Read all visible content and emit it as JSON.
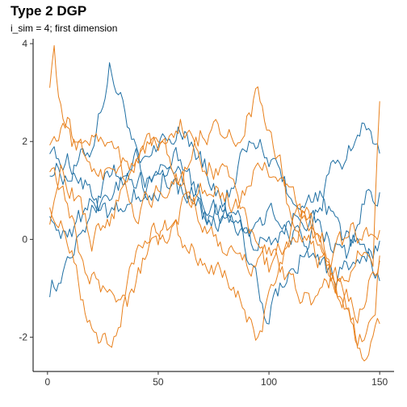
{
  "chart_data": {
    "type": "line",
    "title": "Type 2 DGP",
    "subtitle": "i_sim = 4; first dimension",
    "xlabel": "",
    "ylabel": "",
    "xlim": [
      -6.5,
      156.5
    ],
    "ylim": [
      -2.7,
      4.1
    ],
    "x_ticks": [
      0,
      50,
      100,
      150
    ],
    "y_ticks": [
      -2,
      0,
      2,
      4
    ],
    "grid": false,
    "legend": "none",
    "colors": {
      "blue": "#1f6fa3",
      "orange": "#e8801c"
    },
    "x_start": 1,
    "x_step": 1,
    "n_points": 150,
    "series": [
      {
        "color": "#1f6fa3",
        "anchors": [
          [
            1,
            1.5
          ],
          [
            10,
            1.3
          ],
          [
            20,
            1.9
          ],
          [
            28,
            3.5
          ],
          [
            36,
            2.5
          ],
          [
            44,
            0.9
          ],
          [
            55,
            1.6
          ],
          [
            65,
            0.8
          ],
          [
            75,
            0.3
          ],
          [
            85,
            0.5
          ],
          [
            95,
            -0.1
          ],
          [
            105,
            0.2
          ],
          [
            115,
            0.6
          ],
          [
            125,
            0.1
          ],
          [
            135,
            -0.3
          ],
          [
            145,
            1.0
          ],
          [
            150,
            1.0
          ]
        ]
      },
      {
        "color": "#1f6fa3",
        "anchors": [
          [
            1,
            -1.0
          ],
          [
            8,
            -0.5
          ],
          [
            18,
            0.5
          ],
          [
            28,
            1.2
          ],
          [
            38,
            1.5
          ],
          [
            48,
            1.9
          ],
          [
            58,
            2.3
          ],
          [
            68,
            1.8
          ],
          [
            78,
            0.9
          ],
          [
            88,
            0.2
          ],
          [
            98,
            -1.6
          ],
          [
            108,
            -0.9
          ],
          [
            118,
            0.0
          ],
          [
            128,
            1.3
          ],
          [
            138,
            2.0
          ],
          [
            145,
            2.5
          ],
          [
            150,
            1.8
          ]
        ]
      },
      {
        "color": "#1f6fa3",
        "anchors": [
          [
            1,
            1.9
          ],
          [
            10,
            1.6
          ],
          [
            20,
            1.0
          ],
          [
            30,
            0.4
          ],
          [
            40,
            0.9
          ],
          [
            50,
            1.3
          ],
          [
            60,
            1.0
          ],
          [
            70,
            0.9
          ],
          [
            80,
            0.5
          ],
          [
            90,
            0.1
          ],
          [
            100,
            0.6
          ],
          [
            110,
            0.2
          ],
          [
            120,
            -0.3
          ],
          [
            130,
            -0.8
          ],
          [
            140,
            -0.5
          ],
          [
            150,
            -0.2
          ]
        ]
      },
      {
        "color": "#1f6fa3",
        "anchors": [
          [
            1,
            0.6
          ],
          [
            10,
            0.1
          ],
          [
            20,
            0.7
          ],
          [
            30,
            1.1
          ],
          [
            40,
            1.3
          ],
          [
            50,
            0.9
          ],
          [
            58,
            2.0
          ],
          [
            66,
            1.0
          ],
          [
            75,
            0.4
          ],
          [
            85,
            1.3
          ],
          [
            93,
            2.1
          ],
          [
            103,
            1.5
          ],
          [
            113,
            0.6
          ],
          [
            123,
            0.8
          ],
          [
            133,
            0.1
          ],
          [
            143,
            -0.2
          ],
          [
            150,
            -0.9
          ]
        ]
      },
      {
        "color": "#e8801c",
        "anchors": [
          [
            1,
            3.2
          ],
          [
            3,
            3.7
          ],
          [
            6,
            2.6
          ],
          [
            12,
            1.9
          ],
          [
            20,
            2.1
          ],
          [
            30,
            2.0
          ],
          [
            40,
            0.6
          ],
          [
            50,
            1.0
          ],
          [
            60,
            1.3
          ],
          [
            70,
            2.2
          ],
          [
            80,
            2.1
          ],
          [
            88,
            2.3
          ],
          [
            95,
            3.0
          ],
          [
            102,
            2.0
          ],
          [
            110,
            0.8
          ],
          [
            120,
            0.3
          ],
          [
            130,
            -0.9
          ],
          [
            140,
            -0.3
          ],
          [
            147,
            -0.5
          ],
          [
            150,
            3.0
          ]
        ]
      },
      {
        "color": "#e8801c",
        "anchors": [
          [
            1,
            2.0
          ],
          [
            10,
            2.3
          ],
          [
            20,
            1.6
          ],
          [
            30,
            1.1
          ],
          [
            40,
            1.8
          ],
          [
            50,
            2.1
          ],
          [
            60,
            2.5
          ],
          [
            70,
            1.6
          ],
          [
            80,
            1.3
          ],
          [
            90,
            0.3
          ],
          [
            100,
            -0.6
          ],
          [
            108,
            0.0
          ],
          [
            118,
            0.5
          ],
          [
            128,
            -0.4
          ],
          [
            138,
            0.2
          ],
          [
            145,
            0.0
          ],
          [
            150,
            0.3
          ]
        ]
      },
      {
        "color": "#e8801c",
        "anchors": [
          [
            1,
            0.7
          ],
          [
            8,
            0.2
          ],
          [
            16,
            -1.3
          ],
          [
            24,
            -2.3
          ],
          [
            32,
            -1.8
          ],
          [
            40,
            -0.2
          ],
          [
            50,
            0.3
          ],
          [
            60,
            0.1
          ],
          [
            70,
            -0.3
          ],
          [
            80,
            -0.8
          ],
          [
            88,
            -1.4
          ],
          [
            96,
            -2.0
          ],
          [
            104,
            -0.4
          ],
          [
            114,
            0.5
          ],
          [
            124,
            0.0
          ],
          [
            134,
            -1.3
          ],
          [
            142,
            -2.3
          ],
          [
            150,
            -1.6
          ]
        ]
      },
      {
        "color": "#e8801c",
        "anchors": [
          [
            1,
            1.4
          ],
          [
            8,
            0.8
          ],
          [
            16,
            -0.4
          ],
          [
            26,
            -1.0
          ],
          [
            36,
            -1.2
          ],
          [
            46,
            -0.3
          ],
          [
            56,
            0.3
          ],
          [
            66,
            0.9
          ],
          [
            76,
            1.1
          ],
          [
            86,
            0.6
          ],
          [
            96,
            1.5
          ],
          [
            104,
            1.3
          ],
          [
            112,
            0.2
          ],
          [
            122,
            -0.4
          ],
          [
            132,
            -1.0
          ],
          [
            140,
            -1.5
          ],
          [
            146,
            -0.8
          ],
          [
            150,
            -0.4
          ]
        ]
      },
      {
        "color": "#e8801c",
        "anchors": [
          [
            1,
            0.3
          ],
          [
            6,
            1.5
          ],
          [
            12,
            1.0
          ],
          [
            20,
            0.0
          ],
          [
            30,
            0.6
          ],
          [
            40,
            1.6
          ],
          [
            50,
            2.0
          ],
          [
            60,
            1.4
          ],
          [
            70,
            0.4
          ],
          [
            80,
            -0.2
          ],
          [
            90,
            -0.6
          ],
          [
            100,
            -0.2
          ],
          [
            110,
            -1.0
          ],
          [
            120,
            -1.4
          ],
          [
            130,
            -0.6
          ],
          [
            140,
            -2.0
          ],
          [
            148,
            -1.6
          ],
          [
            150,
            -0.3
          ]
        ]
      }
    ]
  }
}
